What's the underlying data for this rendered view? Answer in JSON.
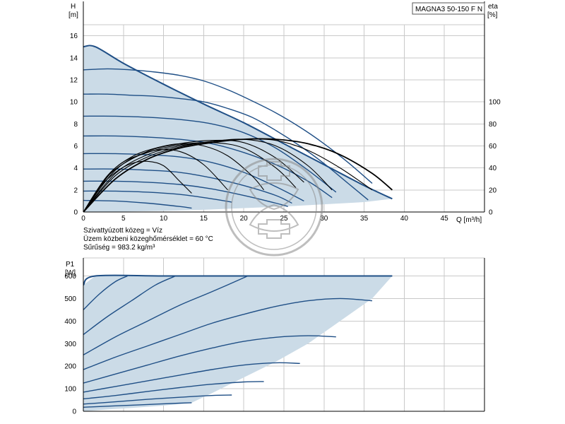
{
  "chart_data": [
    {
      "type": "line",
      "title": "MAGNA3 50-150 F N",
      "ylabel": "H",
      "yunit": "[m]",
      "y2label": "eta",
      "y2unit": "[%]",
      "xlabel": "Q [m³/h]",
      "xlim": [
        0,
        50
      ],
      "ylim": [
        0,
        17
      ],
      "y2lim": [
        0,
        170
      ],
      "grid": true,
      "x_ticks": [
        "0",
        "5",
        "10",
        "15",
        "20",
        "25",
        "30",
        "35",
        "40",
        "45"
      ],
      "y_ticks": [
        "0",
        "2",
        "4",
        "6",
        "8",
        "10",
        "12",
        "14",
        "16"
      ],
      "y2_ticks": [
        "0",
        "20",
        "40",
        "60",
        "80",
        "100"
      ],
      "envelope": {
        "x": [
          0,
          1.5,
          5,
          10,
          15,
          20,
          25,
          30,
          35,
          38.5,
          38.5,
          35,
          30,
          25,
          20,
          15,
          10,
          5,
          0
        ],
        "y": [
          15,
          15,
          13.5,
          11.6,
          9.8,
          8.1,
          6.2,
          4.3,
          2.4,
          1.2,
          1.2,
          0.9,
          0.7,
          0.5,
          0.35,
          0.2,
          0.1,
          0.03,
          0
        ]
      },
      "head_curves": [
        {
          "x": [
            0,
            1.5,
            5,
            10,
            15,
            20,
            25,
            30,
            35,
            38.5
          ],
          "y": [
            15,
            15,
            13.5,
            11.6,
            9.8,
            8.1,
            6.2,
            4.3,
            2.4,
            1.2
          ]
        },
        {
          "x": [
            0,
            3,
            6,
            9,
            12,
            15,
            18,
            21,
            24,
            27,
            30,
            33,
            36
          ],
          "y": [
            12.9,
            13.0,
            12.9,
            12.7,
            12.4,
            11.9,
            11.1,
            10.1,
            9.0,
            7.7,
            6.2,
            4.5,
            2.6
          ]
        },
        {
          "x": [
            0,
            3,
            6,
            9,
            12,
            15,
            18,
            21,
            24,
            27,
            30,
            33,
            35.5
          ],
          "y": [
            10.7,
            10.7,
            10.6,
            10.5,
            10.3,
            10.0,
            9.4,
            8.6,
            7.4,
            6.0,
            4.4,
            2.6,
            1.1
          ]
        },
        {
          "x": [
            0,
            4,
            8,
            12,
            16,
            20,
            24,
            28,
            31.5
          ],
          "y": [
            8.7,
            8.7,
            8.6,
            8.4,
            8.0,
            7.2,
            5.8,
            3.8,
            1.8
          ]
        },
        {
          "x": [
            0,
            4,
            8,
            12,
            16,
            20,
            24,
            28,
            31
          ],
          "y": [
            6.9,
            6.9,
            6.8,
            6.6,
            6.2,
            5.4,
            4.3,
            2.8,
            1.3
          ]
        },
        {
          "x": [
            0,
            4,
            8,
            12,
            16,
            20,
            24,
            27.5
          ],
          "y": [
            5.3,
            5.3,
            5.2,
            5.0,
            4.5,
            3.6,
            2.3,
            1.0
          ]
        },
        {
          "x": [
            0,
            4,
            8,
            12,
            16,
            20,
            24,
            26
          ],
          "y": [
            3.9,
            3.9,
            3.8,
            3.6,
            3.1,
            2.4,
            1.5,
            0.8
          ]
        },
        {
          "x": [
            0,
            4,
            8,
            12,
            16,
            20,
            24,
            25.5
          ],
          "y": [
            2.8,
            2.8,
            2.7,
            2.5,
            2.1,
            1.5,
            0.8,
            0.5
          ]
        },
        {
          "x": [
            0,
            4,
            8,
            12,
            16,
            18.5
          ],
          "y": [
            1.9,
            1.9,
            1.8,
            1.6,
            1.2,
            0.9
          ]
        },
        {
          "x": [
            0,
            4,
            8,
            12,
            13.5
          ],
          "y": [
            1.05,
            1.0,
            0.8,
            0.5,
            0.35
          ]
        }
      ],
      "eta_curves": [
        {
          "x": [
            0,
            2,
            4,
            6,
            8,
            10,
            12,
            13.5
          ],
          "y": [
            0,
            22,
            36,
            44,
            46,
            42,
            28,
            17
          ]
        },
        {
          "x": [
            0,
            3,
            6,
            9,
            12,
            15,
            18
          ],
          "y": [
            0,
            32,
            48,
            56,
            55,
            43,
            20
          ]
        },
        {
          "x": [
            0,
            3,
            6,
            9,
            12,
            15,
            18,
            21,
            22.5
          ],
          "y": [
            0,
            33,
            50,
            58,
            62,
            60,
            51,
            33,
            20
          ]
        },
        {
          "x": [
            0,
            4,
            8,
            12,
            16,
            20,
            24,
            26.5
          ],
          "y": [
            0,
            40,
            54,
            61,
            63,
            58,
            40,
            22
          ]
        },
        {
          "x": [
            0,
            4,
            8,
            12,
            16,
            20,
            24,
            27.5
          ],
          "y": [
            0,
            38,
            55,
            62,
            65,
            63,
            49,
            27
          ]
        },
        {
          "x": [
            0,
            4,
            8,
            12,
            16,
            20,
            24,
            28,
            31
          ],
          "y": [
            0,
            35,
            52,
            60,
            64,
            66,
            60,
            42,
            20
          ]
        },
        {
          "x": [
            0,
            4,
            8,
            12,
            16,
            20,
            24,
            28,
            32,
            36
          ],
          "y": [
            0,
            33,
            50,
            59,
            64,
            66,
            65,
            56,
            40,
            20
          ]
        },
        {
          "x": [
            0,
            4,
            8,
            12,
            16,
            20,
            24,
            28,
            32,
            36,
            38.5
          ],
          "y": [
            0,
            30,
            48,
            58,
            63,
            66,
            66,
            62,
            52,
            35,
            20
          ]
        }
      ]
    },
    {
      "type": "line",
      "ylabel": "P1",
      "yunit": "[W]",
      "xlim": [
        0,
        50
      ],
      "ylim": [
        0,
        680
      ],
      "grid": true,
      "y_ticks": [
        "0",
        "100",
        "200",
        "300",
        "400",
        "500",
        "600"
      ],
      "envelope": {
        "x": [
          0,
          1.5,
          38.5,
          38.5,
          36,
          32,
          28,
          24,
          20,
          16,
          13.5,
          10,
          6,
          3,
          0
        ],
        "y": [
          560,
          600,
          600,
          600,
          500,
          400,
          300,
          220,
          150,
          80,
          38,
          25,
          15,
          8,
          0
        ]
      },
      "power_curves": [
        {
          "x": [
            0,
            1.5,
            10,
            20,
            30,
            38.5
          ],
          "y": [
            560,
            600,
            600,
            600,
            600,
            600
          ]
        },
        {
          "x": [
            0,
            2,
            4,
            5.5
          ],
          "y": [
            450,
            520,
            575,
            600
          ]
        },
        {
          "x": [
            0,
            3,
            6,
            9,
            11.5
          ],
          "y": [
            340,
            420,
            490,
            560,
            600
          ]
        },
        {
          "x": [
            0,
            4,
            8,
            12,
            16,
            20.5
          ],
          "y": [
            250,
            330,
            400,
            470,
            530,
            600
          ]
        },
        {
          "x": [
            0,
            4,
            8,
            12,
            16,
            20,
            24,
            28,
            32,
            36
          ],
          "y": [
            185,
            240,
            290,
            340,
            390,
            430,
            465,
            490,
            500,
            490
          ]
        },
        {
          "x": [
            0,
            4,
            8,
            12,
            16,
            20,
            24,
            28,
            31.5
          ],
          "y": [
            125,
            165,
            205,
            245,
            280,
            310,
            328,
            335,
            330
          ]
        },
        {
          "x": [
            0,
            4,
            8,
            12,
            16,
            20,
            24,
            27
          ],
          "y": [
            85,
            110,
            135,
            160,
            185,
            205,
            215,
            212
          ]
        },
        {
          "x": [
            0,
            4,
            8,
            12,
            16,
            20,
            22.5
          ],
          "y": [
            55,
            70,
            88,
            105,
            120,
            130,
            132
          ]
        },
        {
          "x": [
            0,
            4,
            8,
            12,
            16,
            18.5
          ],
          "y": [
            32,
            42,
            53,
            62,
            70,
            72
          ]
        },
        {
          "x": [
            0,
            4,
            8,
            12,
            13.5
          ],
          "y": [
            18,
            24,
            30,
            36,
            38
          ]
        }
      ]
    }
  ],
  "medium_info": [
    "Szivattyúzott közeg = Víz",
    "Üzem közbeni közeghőmérséklet = 60 °C",
    "Sűrűség = 983.2 kg/m³"
  ],
  "colors": {
    "fill": "#cbdbe7",
    "curve": "#1f4f86",
    "eta": "#000000",
    "grid": "#c9c9c9"
  }
}
